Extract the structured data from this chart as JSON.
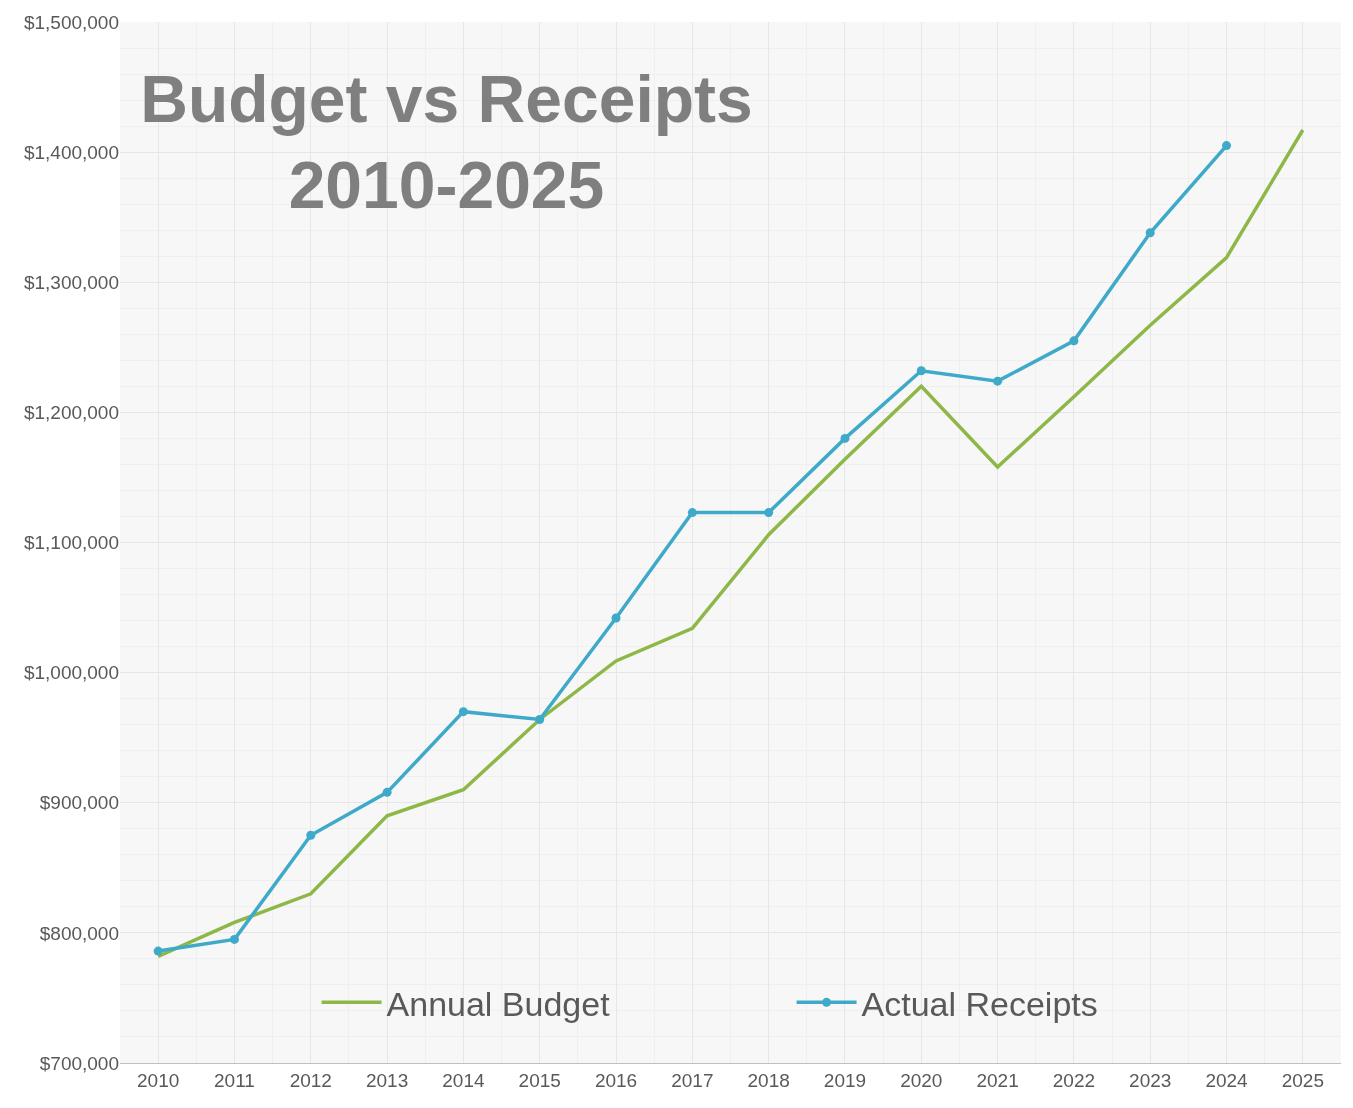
{
  "chart_data": {
    "type": "line",
    "title": "Budget vs Receipts\n2010-2025",
    "categories": [
      "2010",
      "2011",
      "2012",
      "2013",
      "2014",
      "2015",
      "2016",
      "2017",
      "2018",
      "2019",
      "2020",
      "2021",
      "2022",
      "2023",
      "2024",
      "2025"
    ],
    "series": [
      {
        "name": "Annual Budget",
        "color": "#8db848",
        "marker": "none",
        "values": [
          782000,
          808000,
          830000,
          890000,
          910000,
          964000,
          1009000,
          1034000,
          1106000,
          1164000,
          1220000,
          1158000,
          1212000,
          1267000,
          1319000,
          1417000
        ]
      },
      {
        "name": "Actual Receipts",
        "color": "#3ea9c8",
        "marker": "circle",
        "values": [
          786000,
          795000,
          875000,
          908000,
          970000,
          964000,
          1042000,
          1123000,
          1123000,
          1180000,
          1232000,
          1224000,
          1255000,
          1338000,
          1405000,
          null
        ]
      }
    ],
    "ylim": [
      700000,
      1500000
    ],
    "yticks": [
      {
        "value": 700000,
        "label": "$700,000"
      },
      {
        "value": 800000,
        "label": "$800,000"
      },
      {
        "value": 900000,
        "label": "$900,000"
      },
      {
        "value": 1000000,
        "label": "$1,000,000"
      },
      {
        "value": 1100000,
        "label": "$1,100,000"
      },
      {
        "value": 1200000,
        "label": "$1,200,000"
      },
      {
        "value": 1300000,
        "label": "$1,300,000"
      },
      {
        "value": 1400000,
        "label": "$1,400,000"
      },
      {
        "value": 1500000,
        "label": "$1,500,000"
      }
    ],
    "grid": true,
    "legend": "bottom",
    "line_style": "solid"
  }
}
